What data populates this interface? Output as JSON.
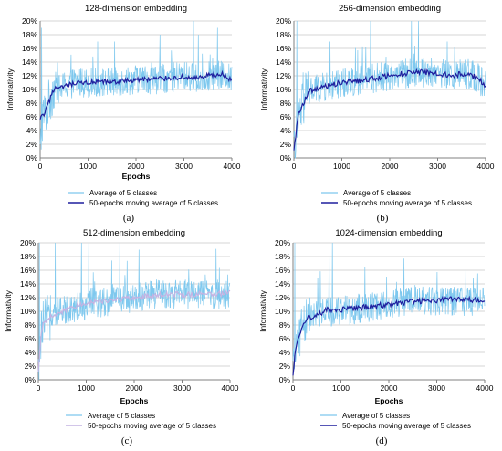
{
  "chart_data": [
    {
      "type": "line",
      "title": "128-dimension embedding",
      "xlabel": "Epochs",
      "ylabel": "Informativity",
      "caption": "(a)",
      "xlim": [
        0,
        4000
      ],
      "ylim": [
        0,
        20
      ],
      "x_ticks": [
        "0",
        "1000",
        "2000",
        "3000",
        "4000"
      ],
      "y_ticks": [
        "0%",
        "2%",
        "4%",
        "6%",
        "8%",
        "10%",
        "12%",
        "14%",
        "16%",
        "18%",
        "20%"
      ],
      "grid": "horizontal",
      "legend_position": "below-plot",
      "series": [
        {
          "name": "Average of 5 classes",
          "color": "#7ec8ee",
          "x": [
            0,
            50,
            100,
            200,
            300,
            400,
            500,
            700,
            1000,
            1500,
            2000,
            2500,
            3000,
            3300,
            3500,
            3800,
            4000
          ],
          "y": [
            0.5,
            6,
            6.5,
            8.5,
            10.5,
            10,
            10.5,
            11,
            11,
            11,
            11.5,
            11.5,
            12,
            11.5,
            12,
            12,
            11.5
          ],
          "spikes_max": [
            19,
            17,
            17,
            18,
            20,
            18,
            19
          ],
          "spike_x": [
            30,
            1200,
            1550,
            2500,
            3200,
            3300,
            3700
          ]
        },
        {
          "name": "50-epochs moving average of 5 classes",
          "color": "#1f1f9e",
          "x": [
            0,
            50,
            100,
            200,
            300,
            400,
            500,
            700,
            1000,
            1500,
            2000,
            2500,
            3000,
            3300,
            3500,
            3800,
            4000
          ],
          "y": [
            5.5,
            6.2,
            6.5,
            8.5,
            10.3,
            10,
            10.4,
            10.8,
            11,
            11.1,
            11.4,
            11.6,
            11.8,
            11.6,
            12,
            12.2,
            11.3
          ]
        }
      ]
    },
    {
      "type": "line",
      "title": "256-dimension embedding",
      "xlabel": "",
      "ylabel": "Informativity",
      "caption": "(b)",
      "xlim": [
        0,
        4000
      ],
      "ylim": [
        0,
        20
      ],
      "x_ticks": [
        "0",
        "1000",
        "2000",
        "3000",
        "4000"
      ],
      "y_ticks": [
        "0%",
        "2%",
        "4%",
        "6%",
        "8%",
        "10%",
        "12%",
        "14%",
        "16%",
        "18%",
        "20%"
      ],
      "grid": "horizontal",
      "legend_position": "below-plot",
      "series": [
        {
          "name": "Average of 5 classes",
          "color": "#7ec8ee",
          "x": [
            0,
            50,
            100,
            200,
            300,
            400,
            500,
            700,
            1000,
            1500,
            2000,
            2500,
            3000,
            3300,
            3500,
            3800,
            4000
          ],
          "y": [
            0.5,
            3.5,
            6,
            8,
            9.5,
            10,
            10,
            10.5,
            11,
            11.5,
            12,
            12.5,
            12.5,
            12,
            12.5,
            12,
            10.5
          ],
          "spikes_max": [
            20,
            17,
            20,
            20,
            20,
            17
          ],
          "spike_x": [
            60,
            750,
            1600,
            2450,
            2600,
            3200
          ]
        },
        {
          "name": "50-epochs moving average of 5 classes",
          "color": "#1f1f9e",
          "x": [
            0,
            50,
            100,
            200,
            300,
            400,
            500,
            700,
            1000,
            1500,
            2000,
            2500,
            3000,
            3300,
            3500,
            3800,
            4000
          ],
          "y": [
            1,
            4,
            6.5,
            8,
            9.6,
            10,
            10,
            10.5,
            11,
            11.4,
            12,
            12.6,
            12.4,
            12,
            12.3,
            11.8,
            10.6
          ]
        }
      ]
    },
    {
      "type": "line",
      "title": "512-dimension embedding",
      "xlabel": "Epochs",
      "ylabel": "Informativity",
      "caption": "(c)",
      "xlim": [
        0,
        4000
      ],
      "ylim": [
        0,
        20
      ],
      "x_ticks": [
        "0",
        "1000",
        "2000",
        "3000",
        "4000"
      ],
      "y_ticks": [
        "0%",
        "2%",
        "4%",
        "6%",
        "8%",
        "10%",
        "12%",
        "14%",
        "16%",
        "18%",
        "20%"
      ],
      "grid": "horizontal",
      "legend_position": "below-plot",
      "series": [
        {
          "name": "Average of 5 classes",
          "color": "#7ec8ee",
          "x": [
            0,
            50,
            100,
            200,
            300,
            400,
            500,
            700,
            1000,
            1500,
            2000,
            2500,
            3000,
            3300,
            3500,
            3800,
            4000
          ],
          "y": [
            1,
            6,
            8,
            9,
            9.5,
            9.5,
            10,
            10.5,
            11,
            11.5,
            12,
            12.5,
            12.5,
            12.5,
            12.5,
            12.5,
            12.5
          ],
          "spikes_max": [
            20,
            20,
            20,
            20,
            20,
            19
          ],
          "spike_x": [
            20,
            350,
            900,
            1050,
            1700,
            2100
          ]
        },
        {
          "name": "50-epochs moving average of 5 classes",
          "color": "#c4b3e2",
          "x": [
            0,
            50,
            100,
            200,
            300,
            400,
            500,
            700,
            1000,
            1500,
            2000,
            2500,
            3000,
            3300,
            3500,
            3800,
            4000
          ],
          "y": [
            1,
            6,
            8,
            9,
            9.5,
            9.6,
            10,
            10.6,
            11.2,
            11.6,
            12,
            12.4,
            12.5,
            12.5,
            12.6,
            12.6,
            12.8
          ]
        }
      ]
    },
    {
      "type": "line",
      "title": "1024-dimension embedding",
      "xlabel": "Epochs",
      "ylabel": "Informativity",
      "caption": "(d)",
      "xlim": [
        0,
        4000
      ],
      "ylim": [
        0,
        20
      ],
      "x_ticks": [
        "0",
        "1000",
        "2000",
        "3000",
        "4000"
      ],
      "y_ticks": [
        "0%",
        "2%",
        "4%",
        "6%",
        "8%",
        "10%",
        "12%",
        "14%",
        "16%",
        "18%",
        "20%"
      ],
      "grid": "horizontal",
      "legend_position": "below-plot",
      "series": [
        {
          "name": "Average of 5 classes",
          "color": "#7ec8ee",
          "x": [
            0,
            50,
            100,
            200,
            300,
            400,
            500,
            700,
            1000,
            1500,
            2000,
            2500,
            3000,
            3300,
            3500,
            3800,
            4000
          ],
          "y": [
            0.5,
            4.5,
            6,
            8,
            9,
            9,
            9.5,
            10,
            10,
            10.5,
            11,
            11.5,
            11.5,
            11.5,
            11.5,
            11.5,
            11.5
          ],
          "spikes_max": [
            20,
            20,
            20,
            16.5
          ],
          "spike_x": [
            40,
            750,
            820,
            1500
          ]
        },
        {
          "name": "50-epochs moving average of 5 classes",
          "color": "#1f1f9e",
          "x": [
            0,
            50,
            100,
            200,
            300,
            400,
            500,
            700,
            1000,
            1500,
            2000,
            2500,
            3000,
            3300,
            3500,
            3800,
            4000
          ],
          "y": [
            0.5,
            4.5,
            6.2,
            8,
            9,
            9.2,
            9.5,
            10.2,
            10.2,
            10.6,
            11,
            11.4,
            11.6,
            11.8,
            11.7,
            11.6,
            11.6
          ]
        }
      ]
    }
  ]
}
